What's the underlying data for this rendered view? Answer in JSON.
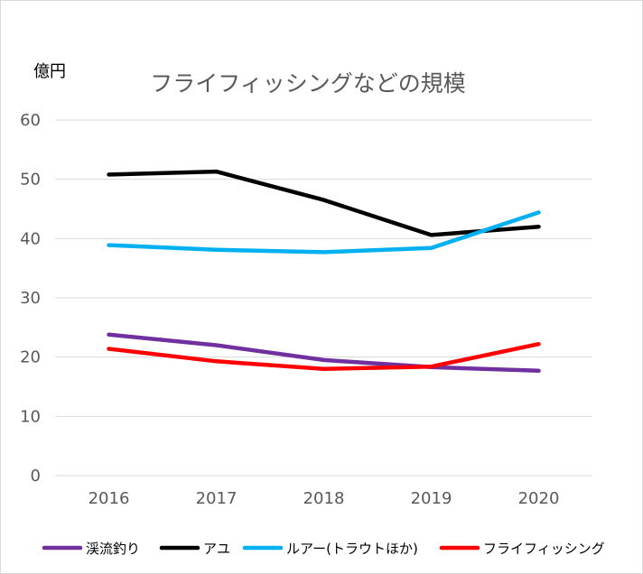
{
  "chart_data": {
    "type": "line",
    "title": "フライフィッシングなどの規模",
    "unit_label": "億円",
    "categories": [
      "2016",
      "2017",
      "2018",
      "2019",
      "2020"
    ],
    "ylim": [
      0,
      60
    ],
    "yticks": [
      "0",
      "10",
      "20",
      "30",
      "40",
      "50",
      "60"
    ],
    "grid": true,
    "legend_position": "bottom",
    "series": [
      {
        "name": "渓流釣り",
        "color": "#7030a0",
        "values": [
          23.8,
          22.0,
          19.5,
          18.3,
          17.7
        ]
      },
      {
        "name": "アユ",
        "color": "#000000",
        "values": [
          50.8,
          51.3,
          46.5,
          40.6,
          42.0
        ]
      },
      {
        "name": "ルアー(トラウトほか)",
        "color": "#00b0f0",
        "values": [
          38.9,
          38.1,
          37.7,
          38.4,
          44.4
        ]
      },
      {
        "name": "フライフィッシング",
        "color": "#ff0000",
        "values": [
          21.4,
          19.3,
          18.0,
          18.4,
          22.2
        ]
      }
    ]
  }
}
